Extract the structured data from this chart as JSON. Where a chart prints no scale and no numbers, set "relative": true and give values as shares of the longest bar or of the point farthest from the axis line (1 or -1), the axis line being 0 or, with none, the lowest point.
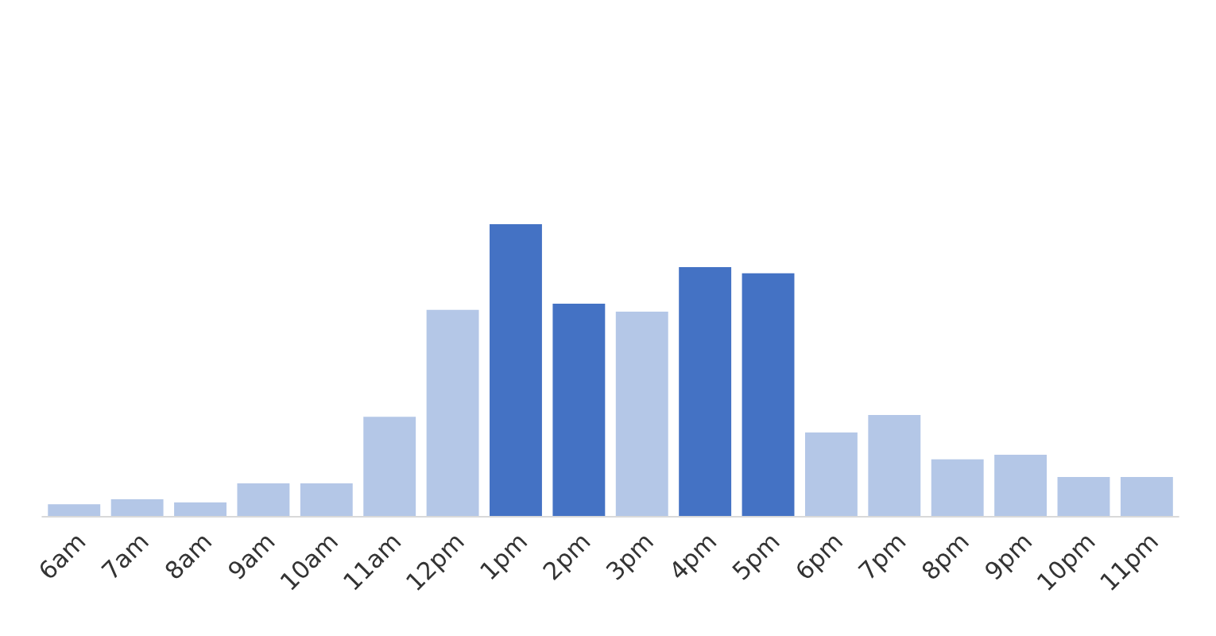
{
  "chart_data": {
    "type": "bar",
    "relative": true,
    "categories": [
      "6am",
      "7am",
      "8am",
      "9am",
      "10am",
      "11am",
      "12pm",
      "1pm",
      "2pm",
      "3pm",
      "4pm",
      "5pm",
      "6pm",
      "7pm",
      "8pm",
      "9pm",
      "10pm",
      "11pm"
    ],
    "values": [
      0.043,
      0.06,
      0.049,
      0.114,
      0.114,
      0.342,
      0.707,
      1,
      0.728,
      0.701,
      0.853,
      0.832,
      0.288,
      0.348,
      0.196,
      0.212,
      0.136,
      0.136
    ],
    "colors": [
      "#b4c7e7",
      "#b4c7e7",
      "#b4c7e7",
      "#b4c7e7",
      "#b4c7e7",
      "#b4c7e7",
      "#b4c7e7",
      "#4472c4",
      "#4472c4",
      "#b4c7e7",
      "#4472c4",
      "#4472c4",
      "#b4c7e7",
      "#b4c7e7",
      "#b4c7e7",
      "#b4c7e7",
      "#b4c7e7",
      "#b4c7e7"
    ],
    "legend": false
  }
}
